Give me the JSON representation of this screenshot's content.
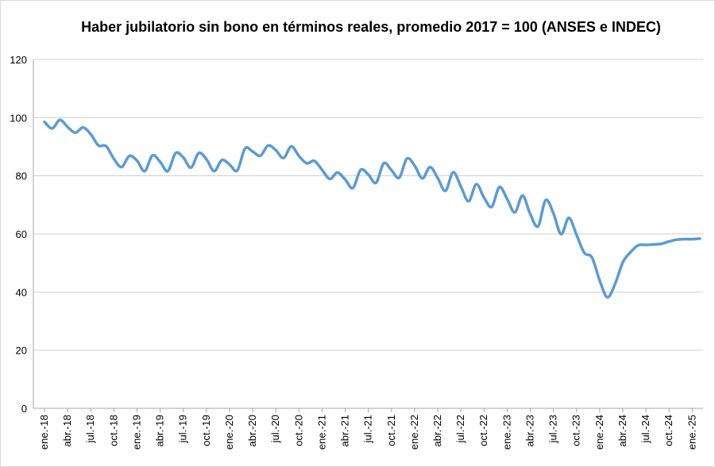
{
  "chart_data": {
    "type": "line",
    "title": "Haber jubilatorio sin bono en términos reales, promedio 2017 = 100 (ANSES e INDEC)",
    "xlabel": "",
    "ylabel": "",
    "ylim": [
      0,
      120
    ],
    "yticks": [
      "0",
      "20",
      "40",
      "60",
      "80",
      "100",
      "120"
    ],
    "xtick_labels": [
      "ene.-18",
      "abr.-18",
      "jul.-18",
      "oct.-18",
      "ene.-19",
      "abr.-19",
      "jul.-19",
      "oct.-19",
      "ene.-20",
      "abr.-20",
      "jul.-20",
      "oct.-20",
      "ene.-21",
      "abr.-21",
      "jul.-21",
      "oct.-21",
      "ene.-22",
      "abr.-22",
      "jul.-22",
      "oct.-22",
      "ene.-23",
      "abr.-23",
      "jul.-23",
      "oct.-23",
      "ene.-24",
      "abr.-24",
      "jul.-24",
      "oct.-24",
      "ene.-25"
    ],
    "grid": true,
    "legend": "none",
    "series_color": "#5b9bd5",
    "series": [
      {
        "values": [
          98.5,
          96.3,
          99.2,
          96.8,
          94.8,
          96.6,
          94.3,
          90.4,
          90.2,
          85.8,
          83.0,
          86.8,
          85.2,
          81.6,
          87.0,
          84.8,
          81.6,
          87.8,
          86.3,
          82.8,
          87.8,
          85.7,
          81.6,
          85.4,
          83.9,
          81.8,
          89.4,
          88.3,
          86.9,
          90.4,
          88.8,
          86.1,
          90.1,
          86.8,
          84.3,
          85.1,
          82.0,
          78.9,
          81.1,
          78.7,
          75.8,
          82.0,
          80.4,
          77.6,
          84.3,
          81.9,
          79.3,
          85.9,
          83.5,
          79.1,
          83.0,
          79.2,
          74.8,
          81.2,
          76.3,
          71.2,
          77.1,
          72.5,
          69.3,
          76.1,
          72.0,
          67.4,
          73.2,
          66.8,
          62.6,
          71.6,
          67.1,
          59.9,
          65.5,
          59.7,
          53.5,
          51.9,
          44.0,
          38.2,
          42.8,
          50.2,
          53.7,
          56.1,
          56.2,
          56.4,
          56.6,
          57.4,
          58.0,
          58.2,
          58.2,
          58.4
        ]
      }
    ]
  }
}
